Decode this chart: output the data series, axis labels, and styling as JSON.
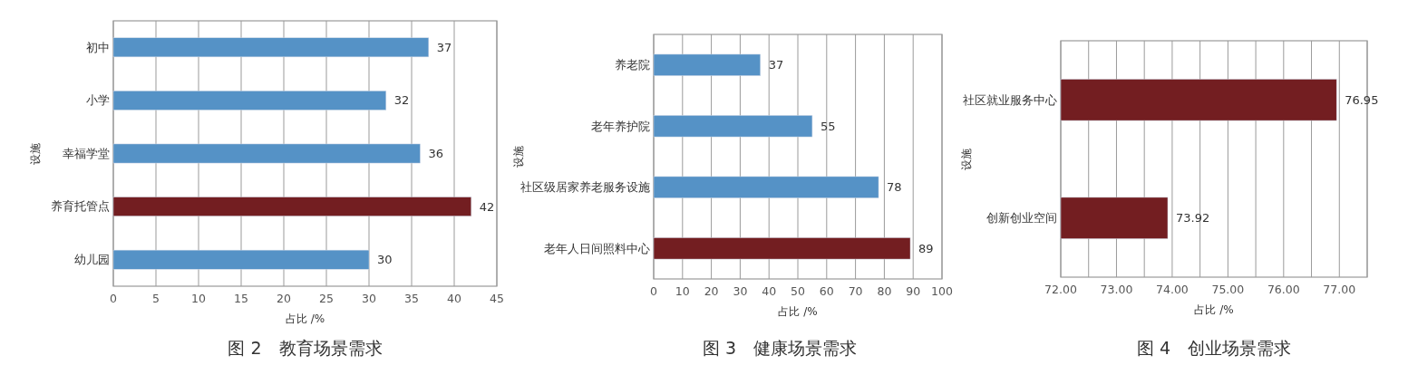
{
  "chart_data": [
    {
      "type": "bar",
      "orientation": "horizontal",
      "title": "图 2　教育场景需求",
      "xlabel": "占比 /%",
      "ylabel": "设施",
      "categories": [
        "初中",
        "小学",
        "幸福学堂",
        "养育托管点",
        "幼儿园"
      ],
      "values": [
        37,
        32,
        36,
        42,
        30
      ],
      "colors": [
        "#5592c6",
        "#5592c6",
        "#5592c6",
        "#731e21",
        "#5592c6"
      ],
      "xlim": [
        0,
        45
      ],
      "xticks": [
        0,
        5,
        10,
        15,
        20,
        25,
        30,
        35,
        40,
        45
      ],
      "grid": "x",
      "data_labels": true
    },
    {
      "type": "bar",
      "orientation": "horizontal",
      "title": "图 3　健康场景需求",
      "xlabel": "占比 /%",
      "ylabel": "设施",
      "categories": [
        "养老院",
        "老年养护院",
        "社区级居家养老服务设施",
        "老年人日间照料中心"
      ],
      "values": [
        37,
        55,
        78,
        89
      ],
      "colors": [
        "#5592c6",
        "#5592c6",
        "#5592c6",
        "#731e21"
      ],
      "xlim": [
        0,
        100
      ],
      "xticks": [
        0,
        10,
        20,
        30,
        40,
        50,
        60,
        70,
        80,
        90,
        100
      ],
      "grid": "x",
      "data_labels": true
    },
    {
      "type": "bar",
      "orientation": "horizontal",
      "title": "图 4　创业场景需求",
      "xlabel": "占比 /%",
      "ylabel": "设施",
      "categories": [
        "社区就业服务中心",
        "创新创业空间"
      ],
      "values": [
        76.95,
        73.92
      ],
      "colors": [
        "#731e21",
        "#731e21"
      ],
      "xlim": [
        72,
        77.5
      ],
      "xticks": [
        {
          "value": 72,
          "label": "72.00"
        },
        {
          "value": 72.5,
          "label": null
        },
        {
          "value": 73,
          "label": "73.00"
        },
        {
          "value": 73.5,
          "label": null
        },
        {
          "value": 74,
          "label": "74.00"
        },
        {
          "value": 74.5,
          "label": null
        },
        {
          "value": 75,
          "label": "75.00"
        },
        {
          "value": 75.5,
          "label": null
        },
        {
          "value": 76,
          "label": "76.00"
        },
        {
          "value": 76.5,
          "label": null
        },
        {
          "value": 77,
          "label": "77.00"
        },
        {
          "value": 77.5,
          "label": null
        }
      ],
      "grid": "x",
      "data_labels": true
    }
  ]
}
